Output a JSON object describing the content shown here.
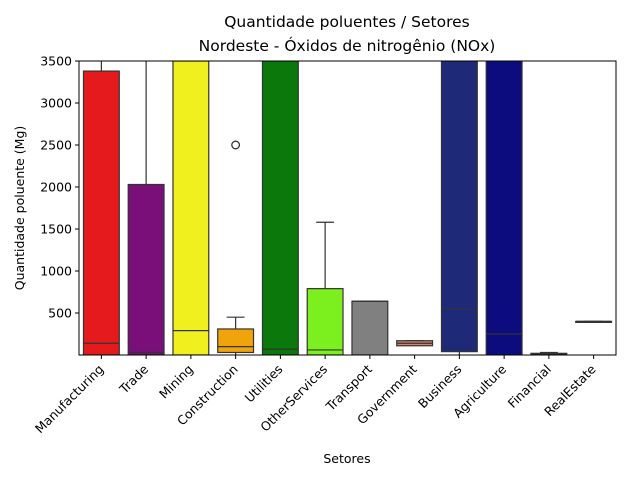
{
  "chart_data": {
    "type": "box",
    "title": "Quantidade poluentes / Setores",
    "subtitle": "Nordeste - Óxidos de nitrogênio (NOx)",
    "xlabel": "Setores",
    "ylabel": "Quantidade poluente (Mg)",
    "ylim": [
      0,
      3500
    ],
    "yticks": [
      500,
      1000,
      1500,
      2000,
      2500,
      3000,
      3500
    ],
    "grid": false,
    "categories": [
      "Manufacturing",
      "Trade",
      "Mining",
      "Construction",
      "Utilities",
      "OtherServices",
      "Transport",
      "Government",
      "Business",
      "Agriculture",
      "Financial",
      "RealEstate"
    ],
    "boxes": [
      {
        "category": "Manufacturing",
        "color": "#e41a1c",
        "q1": 0,
        "median": 140,
        "q3": 3380,
        "whisker_low": 0,
        "whisker_high": 3500,
        "outliers": []
      },
      {
        "category": "Trade",
        "color": "#7a0f7a",
        "q1": 0,
        "median": 30,
        "q3": 2030,
        "whisker_low": 0,
        "whisker_high": 3500,
        "outliers": []
      },
      {
        "category": "Mining",
        "color": "#f0f01e",
        "q1": 0,
        "median": 290,
        "q3": 3500,
        "whisker_low": 0,
        "whisker_high": 3500,
        "outliers": []
      },
      {
        "category": "Construction",
        "color": "#f0a30a",
        "q1": 30,
        "median": 100,
        "q3": 310,
        "whisker_low": 0,
        "whisker_high": 450,
        "outliers": [
          2500
        ]
      },
      {
        "category": "Utilities",
        "color": "#0a780a",
        "q1": 0,
        "median": 70,
        "q3": 3500,
        "whisker_low": 0,
        "whisker_high": 3500,
        "outliers": []
      },
      {
        "category": "OtherServices",
        "color": "#7cf01e",
        "q1": 0,
        "median": 60,
        "q3": 790,
        "whisker_low": 0,
        "whisker_high": 1580,
        "outliers": []
      },
      {
        "category": "Transport",
        "color": "#808080",
        "q1": 0,
        "median": 640,
        "q3": 640,
        "whisker_low": 0,
        "whisker_high": 640,
        "outliers": []
      },
      {
        "category": "Government",
        "color": "#d9826a",
        "q1": 110,
        "median": 140,
        "q3": 170,
        "whisker_low": 110,
        "whisker_high": 170,
        "outliers": []
      },
      {
        "category": "Business",
        "color": "#1e2a78",
        "q1": 40,
        "median": 550,
        "q3": 3500,
        "whisker_low": 0,
        "whisker_high": 3500,
        "outliers": []
      },
      {
        "category": "Agriculture",
        "color": "#0c0c7e",
        "q1": 0,
        "median": 250,
        "q3": 3500,
        "whisker_low": 0,
        "whisker_high": 3500,
        "outliers": []
      },
      {
        "category": "Financial",
        "color": "#e41a1c",
        "q1": 0,
        "median": 10,
        "q3": 20,
        "whisker_low": 0,
        "whisker_high": 30,
        "outliers": []
      },
      {
        "category": "RealEstate",
        "color": "#e41a1c",
        "q1": 400,
        "median": 400,
        "q3": 400,
        "whisker_low": 400,
        "whisker_high": 400,
        "outliers": []
      }
    ]
  }
}
